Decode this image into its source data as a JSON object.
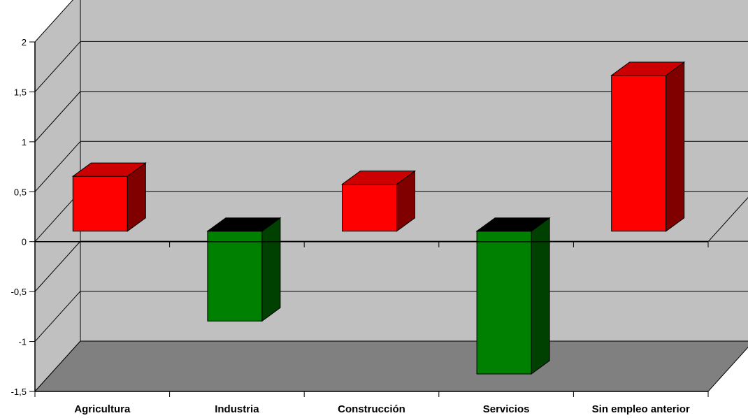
{
  "chart_data": {
    "type": "bar",
    "categories": [
      "Agricultura",
      "Industria",
      "Construcción",
      "Servicios",
      "Sin empleo anterior"
    ],
    "values": [
      0.55,
      -0.9,
      0.47,
      -1.43,
      1.56
    ],
    "ylim": [
      -1.5,
      2
    ],
    "yticks": [
      "2",
      "1,5",
      "1",
      "0,5",
      "0",
      "-0,5",
      "-1",
      "-1,5"
    ],
    "ytick_values": [
      2,
      1.5,
      1,
      0.5,
      0,
      -0.5,
      -1,
      -1.5
    ],
    "grid": true,
    "three_d": true,
    "colors": {
      "positive_front": "#ff0000",
      "positive_top": "#cc0000",
      "positive_side": "#800000",
      "negative_front": "#008000",
      "negative_top": "#000000",
      "negative_side": "#004000",
      "wall": "#c0c0c0",
      "floor": "#808080",
      "side_wall": "#c0c0c0"
    }
  }
}
